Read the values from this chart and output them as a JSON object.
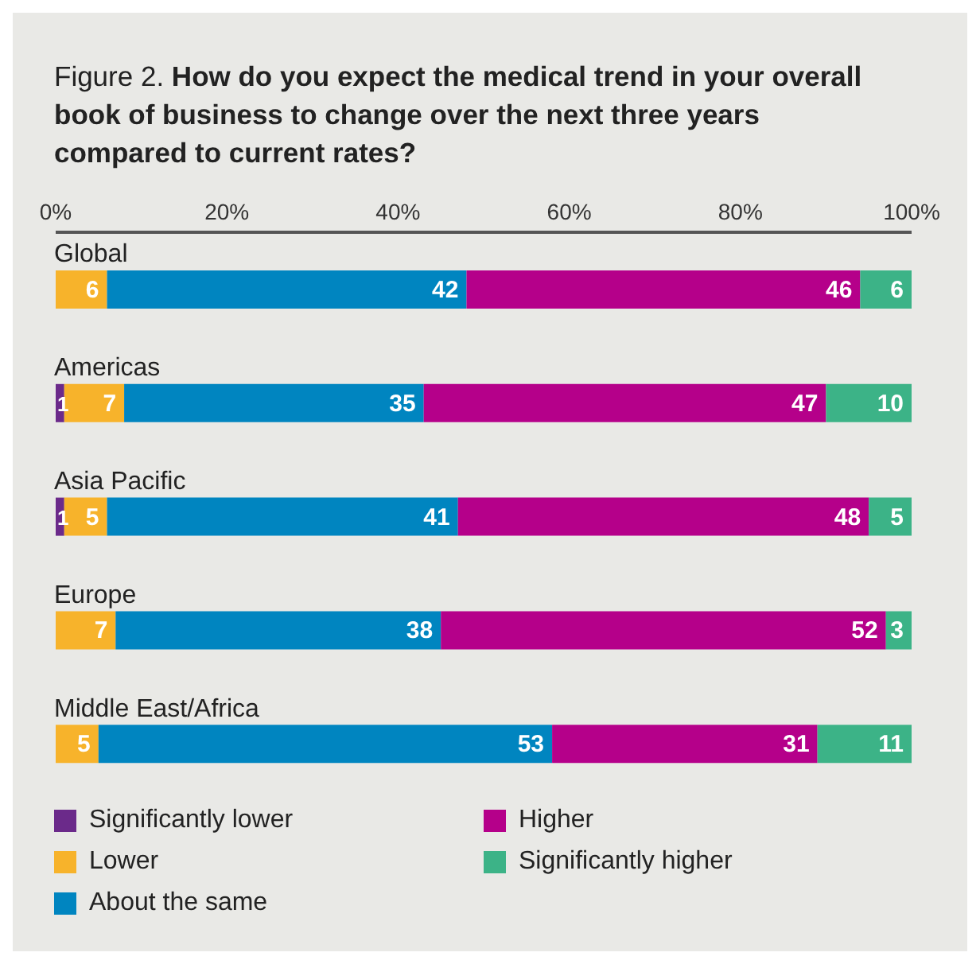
{
  "chart_data": {
    "type": "bar",
    "orientation": "horizontal",
    "stacked": true,
    "title": "Figure 2. How do you expect the medical trend in your overall book of business to change over the next three years compared to current rates?",
    "categories": [
      "Global",
      "Americas",
      "Asia Pacific",
      "Europe",
      "Middle East/Africa"
    ],
    "series": [
      {
        "name": "Significantly lower",
        "color": "#6b2a8a",
        "values": [
          0,
          1,
          1,
          0,
          0
        ],
        "value_labels": [
          null,
          "1",
          "1",
          null,
          null
        ]
      },
      {
        "name": "Lower",
        "color": "#f7b32b",
        "values": [
          6,
          7,
          5,
          7,
          5
        ],
        "value_labels": [
          "6",
          "7",
          "5",
          "7",
          "5"
        ]
      },
      {
        "name": "About the same",
        "color": "#0085c0",
        "values": [
          42,
          35,
          41,
          38,
          53
        ],
        "value_labels": [
          "42",
          "35",
          "41",
          "38",
          "53"
        ]
      },
      {
        "name": "Higher",
        "color": "#b5008a",
        "values": [
          46,
          47,
          48,
          52,
          31
        ],
        "value_labels": [
          "46",
          "47",
          "48",
          "52",
          "31"
        ]
      },
      {
        "name": "Significantly higher",
        "color": "#3cb387",
        "values": [
          6,
          10,
          5,
          3,
          11
        ],
        "value_labels": [
          "6",
          "10",
          "5",
          "3",
          "11"
        ]
      }
    ],
    "xlim": [
      0,
      100
    ],
    "xticks": [
      {
        "value": 0,
        "label": "0%"
      },
      {
        "value": 20,
        "label": "20%"
      },
      {
        "value": 40,
        "label": "40%"
      },
      {
        "value": 60,
        "label": "60%"
      },
      {
        "value": 80,
        "label": "80%"
      },
      {
        "value": 100,
        "label": "100%"
      }
    ],
    "legend": "bottom"
  }
}
